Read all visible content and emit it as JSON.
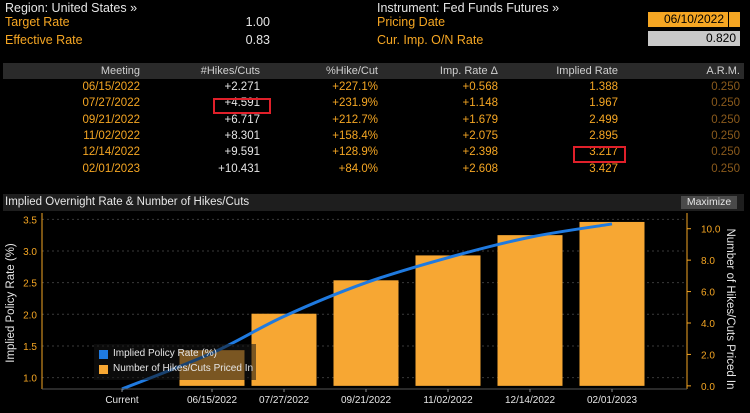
{
  "top": {
    "region": "Region: United States »",
    "instrument": "Instrument: Fed Funds Futures »",
    "target_rate_label": "Target Rate",
    "target_rate_value": "1.00",
    "effective_rate_label": "Effective Rate",
    "effective_rate_value": "0.83",
    "pricing_date_label": "Pricing Date",
    "pricing_date_value": "06/10/2022",
    "cur_imp_label": "Cur. Imp. O/N Rate",
    "cur_imp_value": "0.820"
  },
  "table": {
    "headers": [
      "Meeting",
      "#Hikes/Cuts",
      "%Hike/Cut",
      "Imp. Rate Δ",
      "Implied Rate",
      "A.R.M."
    ],
    "rows": [
      [
        "06/15/2022",
        "+2.271",
        "+227.1%",
        "+0.568",
        "1.388",
        "0.250"
      ],
      [
        "07/27/2022",
        "+4.591",
        "+231.9%",
        "+1.148",
        "1.967",
        "0.250"
      ],
      [
        "09/21/2022",
        "+6.717",
        "+212.7%",
        "+1.679",
        "2.499",
        "0.250"
      ],
      [
        "11/02/2022",
        "+8.301",
        "+158.4%",
        "+2.075",
        "2.895",
        "0.250"
      ],
      [
        "12/14/2022",
        "+9.591",
        "+128.9%",
        "+2.398",
        "3.217",
        "0.250"
      ],
      [
        "02/01/2023",
        "+10.431",
        "+84.0%",
        "+2.608",
        "3.427",
        "0.250"
      ]
    ]
  },
  "chart_header": {
    "title": "Implied Overnight Rate & Number of Hikes/Cuts",
    "maximize": "Maximize"
  },
  "chart_data": {
    "type": "bar",
    "title": "Implied Overnight Rate & Number of Hikes/Cuts",
    "categories": [
      "Current",
      "06/15/2022",
      "07/27/2022",
      "09/21/2022",
      "11/02/2022",
      "12/14/2022",
      "02/01/2023"
    ],
    "ylabel_left": "Implied Policy Rate (%)",
    "ylabel_right": "Number of Hikes/Cuts Priced In",
    "ylim_left": [
      0.82,
      3.6
    ],
    "ylim_right": [
      -0.2,
      11.0
    ],
    "yticks_left": [
      "1.0",
      "1.5",
      "2.0",
      "2.5",
      "3.0",
      "3.5"
    ],
    "yticks_right": [
      "0.0",
      "2.0",
      "4.0",
      "6.0",
      "8.0",
      "10.0"
    ],
    "series": [
      {
        "name": "Implied Policy Rate (%)",
        "kind": "line",
        "axis": "left",
        "values": [
          0.82,
          1.388,
          1.967,
          2.499,
          2.895,
          3.217,
          3.427
        ]
      },
      {
        "name": "Number of Hikes/Cuts Priced In",
        "kind": "bar",
        "axis": "right",
        "values": [
          0,
          2.271,
          4.591,
          6.717,
          8.301,
          9.591,
          10.431
        ]
      }
    ],
    "legend": "bottom-left",
    "colors": {
      "line": "#1f7ae0",
      "bar": "#f7a733"
    }
  }
}
